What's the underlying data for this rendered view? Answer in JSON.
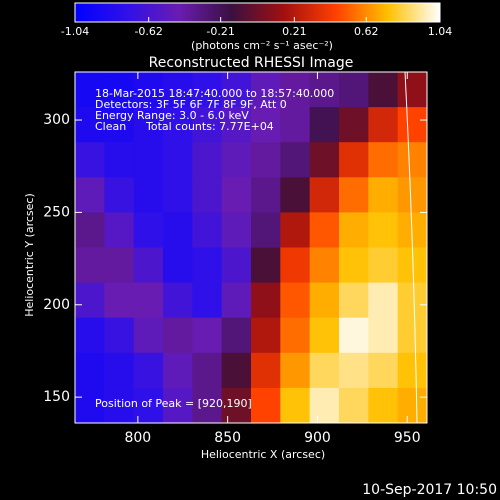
{
  "chart_data": {
    "type": "heatmap",
    "title": "Reconstructed RHESSI Image",
    "colorbar_label": "(photons cm⁻² s⁻¹ asec⁻²)",
    "clim": [
      -1.04,
      1.04
    ],
    "cticks": [
      -1.04,
      -0.62,
      -0.21,
      0.21,
      0.62,
      1.04
    ],
    "colormap": [
      "#0000ff",
      "#3010e8",
      "#6a1cb0",
      "#3a1040",
      "#a01010",
      "#ff4000",
      "#ffc000",
      "#ffffff"
    ],
    "annotations": [
      "18-Mar-2015 18:47:40.000 to 18:57:40.000",
      "Detectors: 3F 5F 6F 7F 8F 9F, Att 0",
      "Energy Range: 3.0 - 6.0 keV",
      "Clean",
      "Total counts: 7.77E+04",
      "Position of Peak = [920,190]"
    ],
    "footer": "10-Sep-2017 10:50",
    "xlabel": "Heliocentric X (arcsec)",
    "ylabel": "Heliocentric Y (arcsec)",
    "xlim": [
      765,
      961
    ],
    "ylim": [
      136,
      326
    ],
    "xticks": [
      800,
      850,
      900,
      950
    ],
    "yticks": [
      150,
      200,
      250,
      300
    ],
    "z": [
      [
        -0.9,
        -0.9,
        -0.85,
        -0.8,
        -0.75,
        -0.65,
        -0.5,
        -0.4,
        -0.35,
        -0.3,
        -0.1,
        0.1
      ],
      [
        -0.85,
        -0.85,
        -0.8,
        -0.75,
        -0.65,
        -0.55,
        -0.45,
        -0.4,
        -0.2,
        0.0,
        0.3,
        0.45
      ],
      [
        -0.7,
        -0.8,
        -0.8,
        -0.75,
        -0.6,
        -0.5,
        -0.4,
        -0.3,
        0.0,
        0.35,
        0.55,
        0.6
      ],
      [
        -0.5,
        -0.7,
        -0.8,
        -0.75,
        -0.6,
        -0.45,
        -0.35,
        -0.1,
        0.3,
        0.55,
        0.7,
        0.65
      ],
      [
        -0.35,
        -0.55,
        -0.75,
        -0.8,
        -0.65,
        -0.5,
        -0.3,
        0.2,
        0.5,
        0.7,
        0.75,
        0.7
      ],
      [
        -0.4,
        -0.4,
        -0.6,
        -0.8,
        -0.75,
        -0.6,
        -0.1,
        0.4,
        0.6,
        0.75,
        0.8,
        0.75
      ],
      [
        -0.6,
        -0.45,
        -0.45,
        -0.65,
        -0.75,
        -0.5,
        0.1,
        0.5,
        0.7,
        0.85,
        0.95,
        0.8
      ],
      [
        -0.8,
        -0.7,
        -0.5,
        -0.4,
        -0.45,
        -0.3,
        0.2,
        0.55,
        0.75,
        1.0,
        0.95,
        0.8
      ],
      [
        -0.85,
        -0.8,
        -0.7,
        -0.5,
        -0.35,
        -0.1,
        0.35,
        0.65,
        0.85,
        0.9,
        0.85,
        0.75
      ],
      [
        -0.85,
        -0.8,
        -0.75,
        -0.55,
        -0.35,
        0.0,
        0.45,
        0.75,
        0.95,
        0.85,
        0.75,
        0.7
      ]
    ]
  }
}
